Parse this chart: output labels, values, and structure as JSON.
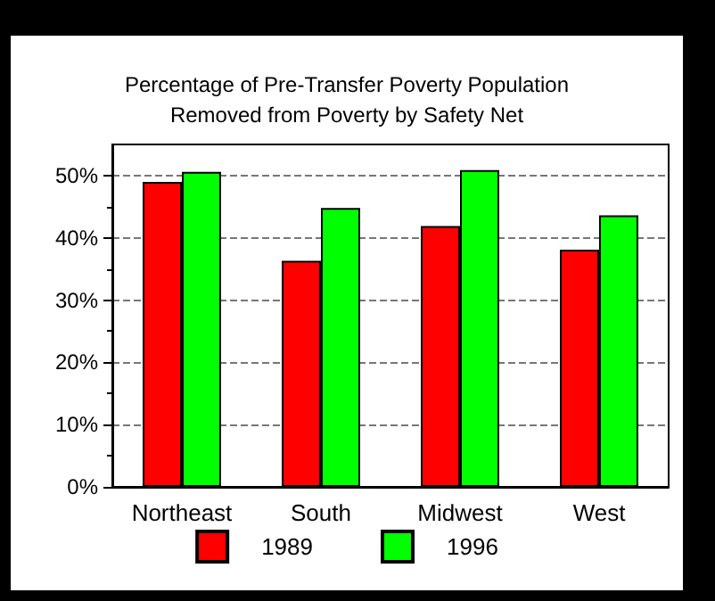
{
  "chart_data": {
    "type": "bar",
    "title": "Percentage of Pre-Transfer Poverty Population\nRemoved from Poverty by Safety Net",
    "categories": [
      "Northeast",
      "South",
      "Midwest",
      "West"
    ],
    "series": [
      {
        "name": "1989",
        "color": "#ff0000",
        "values": [
          49.0,
          36.3,
          41.9,
          38.1
        ]
      },
      {
        "name": "1996",
        "color": "#00ff00",
        "values": [
          50.6,
          44.8,
          50.9,
          43.6
        ]
      }
    ],
    "ylim": [
      0,
      55
    ],
    "yticks": [
      {
        "value": 0,
        "label": "0%"
      },
      {
        "value": 10,
        "label": "10%"
      },
      {
        "value": 20,
        "label": "20%"
      },
      {
        "value": 30,
        "label": "30%"
      },
      {
        "value": 40,
        "label": "40%"
      },
      {
        "value": 50,
        "label": "50%"
      }
    ],
    "grid": "y",
    "legend": "bottom"
  }
}
